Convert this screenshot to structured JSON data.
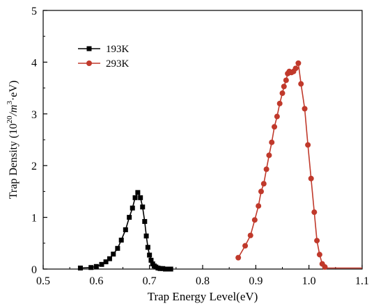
{
  "chart_data": {
    "type": "line",
    "title": "",
    "xlabel": "Trap Energy Level(eV)",
    "ylabel": "Trap Density (10²⁰/m³·eV)",
    "ylabel_parts": {
      "pre": "Trap Density (10",
      "sup1": "20",
      "mid": "/m",
      "sup2": "3",
      "post": "·eV)"
    },
    "xlim": [
      0.5,
      1.1
    ],
    "ylim": [
      0,
      5
    ],
    "x_ticks": [
      0.5,
      0.6,
      0.7,
      0.8,
      0.9,
      1.0,
      1.1
    ],
    "x_tick_labels": [
      "0.5",
      "0.6",
      "0.7",
      "0.8",
      "0.9",
      "1.0",
      "1.1"
    ],
    "y_ticks": [
      0,
      1,
      2,
      3,
      4,
      5
    ],
    "y_tick_labels": [
      "0",
      "1",
      "2",
      "3",
      "4",
      "5"
    ],
    "grid": false,
    "legend_position": "top-left",
    "series": [
      {
        "name": "193K",
        "color": "#000000",
        "marker": "square",
        "x": [
          0.57,
          0.59,
          0.6,
          0.61,
          0.618,
          0.625,
          0.632,
          0.64,
          0.647,
          0.655,
          0.662,
          0.668,
          0.673,
          0.678,
          0.683,
          0.687,
          0.691,
          0.694,
          0.697,
          0.7,
          0.703,
          0.706,
          0.709,
          0.712,
          0.716,
          0.72,
          0.725,
          0.73,
          0.735,
          0.74
        ],
        "y": [
          0.02,
          0.03,
          0.05,
          0.09,
          0.14,
          0.2,
          0.29,
          0.4,
          0.56,
          0.76,
          1.0,
          1.18,
          1.38,
          1.48,
          1.38,
          1.2,
          0.92,
          0.64,
          0.42,
          0.27,
          0.17,
          0.1,
          0.06,
          0.04,
          0.02,
          0.01,
          0.01,
          0.0,
          0.0,
          0.0
        ]
      },
      {
        "name": "293K",
        "color": "#c0392b",
        "marker": "circle",
        "x": [
          0.867,
          0.88,
          0.89,
          0.898,
          0.905,
          0.91,
          0.915,
          0.92,
          0.925,
          0.93,
          0.935,
          0.94,
          0.945,
          0.95,
          0.953,
          0.957,
          0.96,
          0.963,
          0.967,
          0.971,
          0.975,
          0.98,
          0.985,
          0.992,
          0.998,
          1.004,
          1.01,
          1.015,
          1.02,
          1.025,
          1.03
        ],
        "y": [
          0.22,
          0.45,
          0.65,
          0.95,
          1.22,
          1.5,
          1.65,
          1.93,
          2.2,
          2.45,
          2.75,
          2.95,
          3.2,
          3.4,
          3.53,
          3.65,
          3.78,
          3.82,
          3.8,
          3.82,
          3.88,
          3.98,
          3.58,
          3.1,
          2.4,
          1.75,
          1.1,
          0.55,
          0.28,
          0.1,
          0.04
        ]
      },
      {
        "name": "",
        "color": "#c0392b",
        "marker": "none",
        "x": [
          1.03,
          1.04,
          1.06,
          1.08,
          1.1
        ],
        "y": [
          0.02,
          0.02,
          0.02,
          0.02,
          0.02
        ]
      }
    ]
  }
}
